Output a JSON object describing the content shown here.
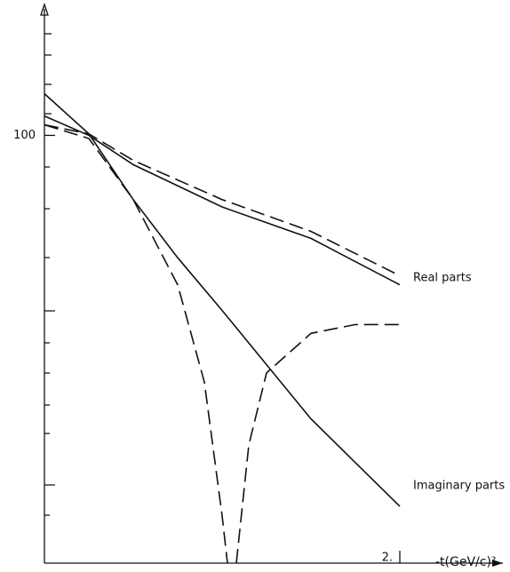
{
  "chart_data": {
    "type": "line",
    "log_y": true,
    "xlabel": "-t(GeV/c)²",
    "xlim": [
      0,
      2.6
    ],
    "ylim": [
      0.36,
      560
    ],
    "xticks": [
      {
        "value": 2,
        "label": "2."
      }
    ],
    "yticks": [
      100
    ],
    "annotations": [
      "Real parts",
      "Imaginary parts"
    ],
    "series": [
      {
        "color": "#111",
        "dash": false,
        "x": [
          0,
          0.25,
          0.5,
          1.0,
          1.5,
          2.0
        ],
        "values": [
          129,
          100,
          68,
          39,
          25.8,
          14.0
        ]
      },
      {
        "color": "#111",
        "dash": true,
        "x": [
          0,
          0.25,
          0.5,
          1.0,
          1.5,
          2.0
        ],
        "values": [
          115,
          102,
          72,
          43,
          28.3,
          15.8
        ]
      },
      {
        "color": "#111",
        "dash": false,
        "x": [
          0,
          0.25,
          0.5,
          0.75,
          1.0,
          1.25,
          1.5,
          1.75,
          2.0
        ],
        "values": [
          173,
          102,
          43,
          20,
          10,
          4.9,
          2.4,
          1.35,
          0.76
        ]
      },
      {
        "color": "#111",
        "dash": true,
        "x": [
          0,
          0.25,
          0.5,
          0.75,
          0.9,
          1.0,
          1.03,
          1.055,
          1.08,
          1.15,
          1.25,
          1.5,
          1.75,
          2.0
        ],
        "values": [
          115,
          96,
          43,
          14,
          3.9,
          0.67,
          0.36,
          null,
          0.36,
          1.7,
          4.4,
          7.4,
          8.3,
          8.3
        ]
      }
    ]
  }
}
